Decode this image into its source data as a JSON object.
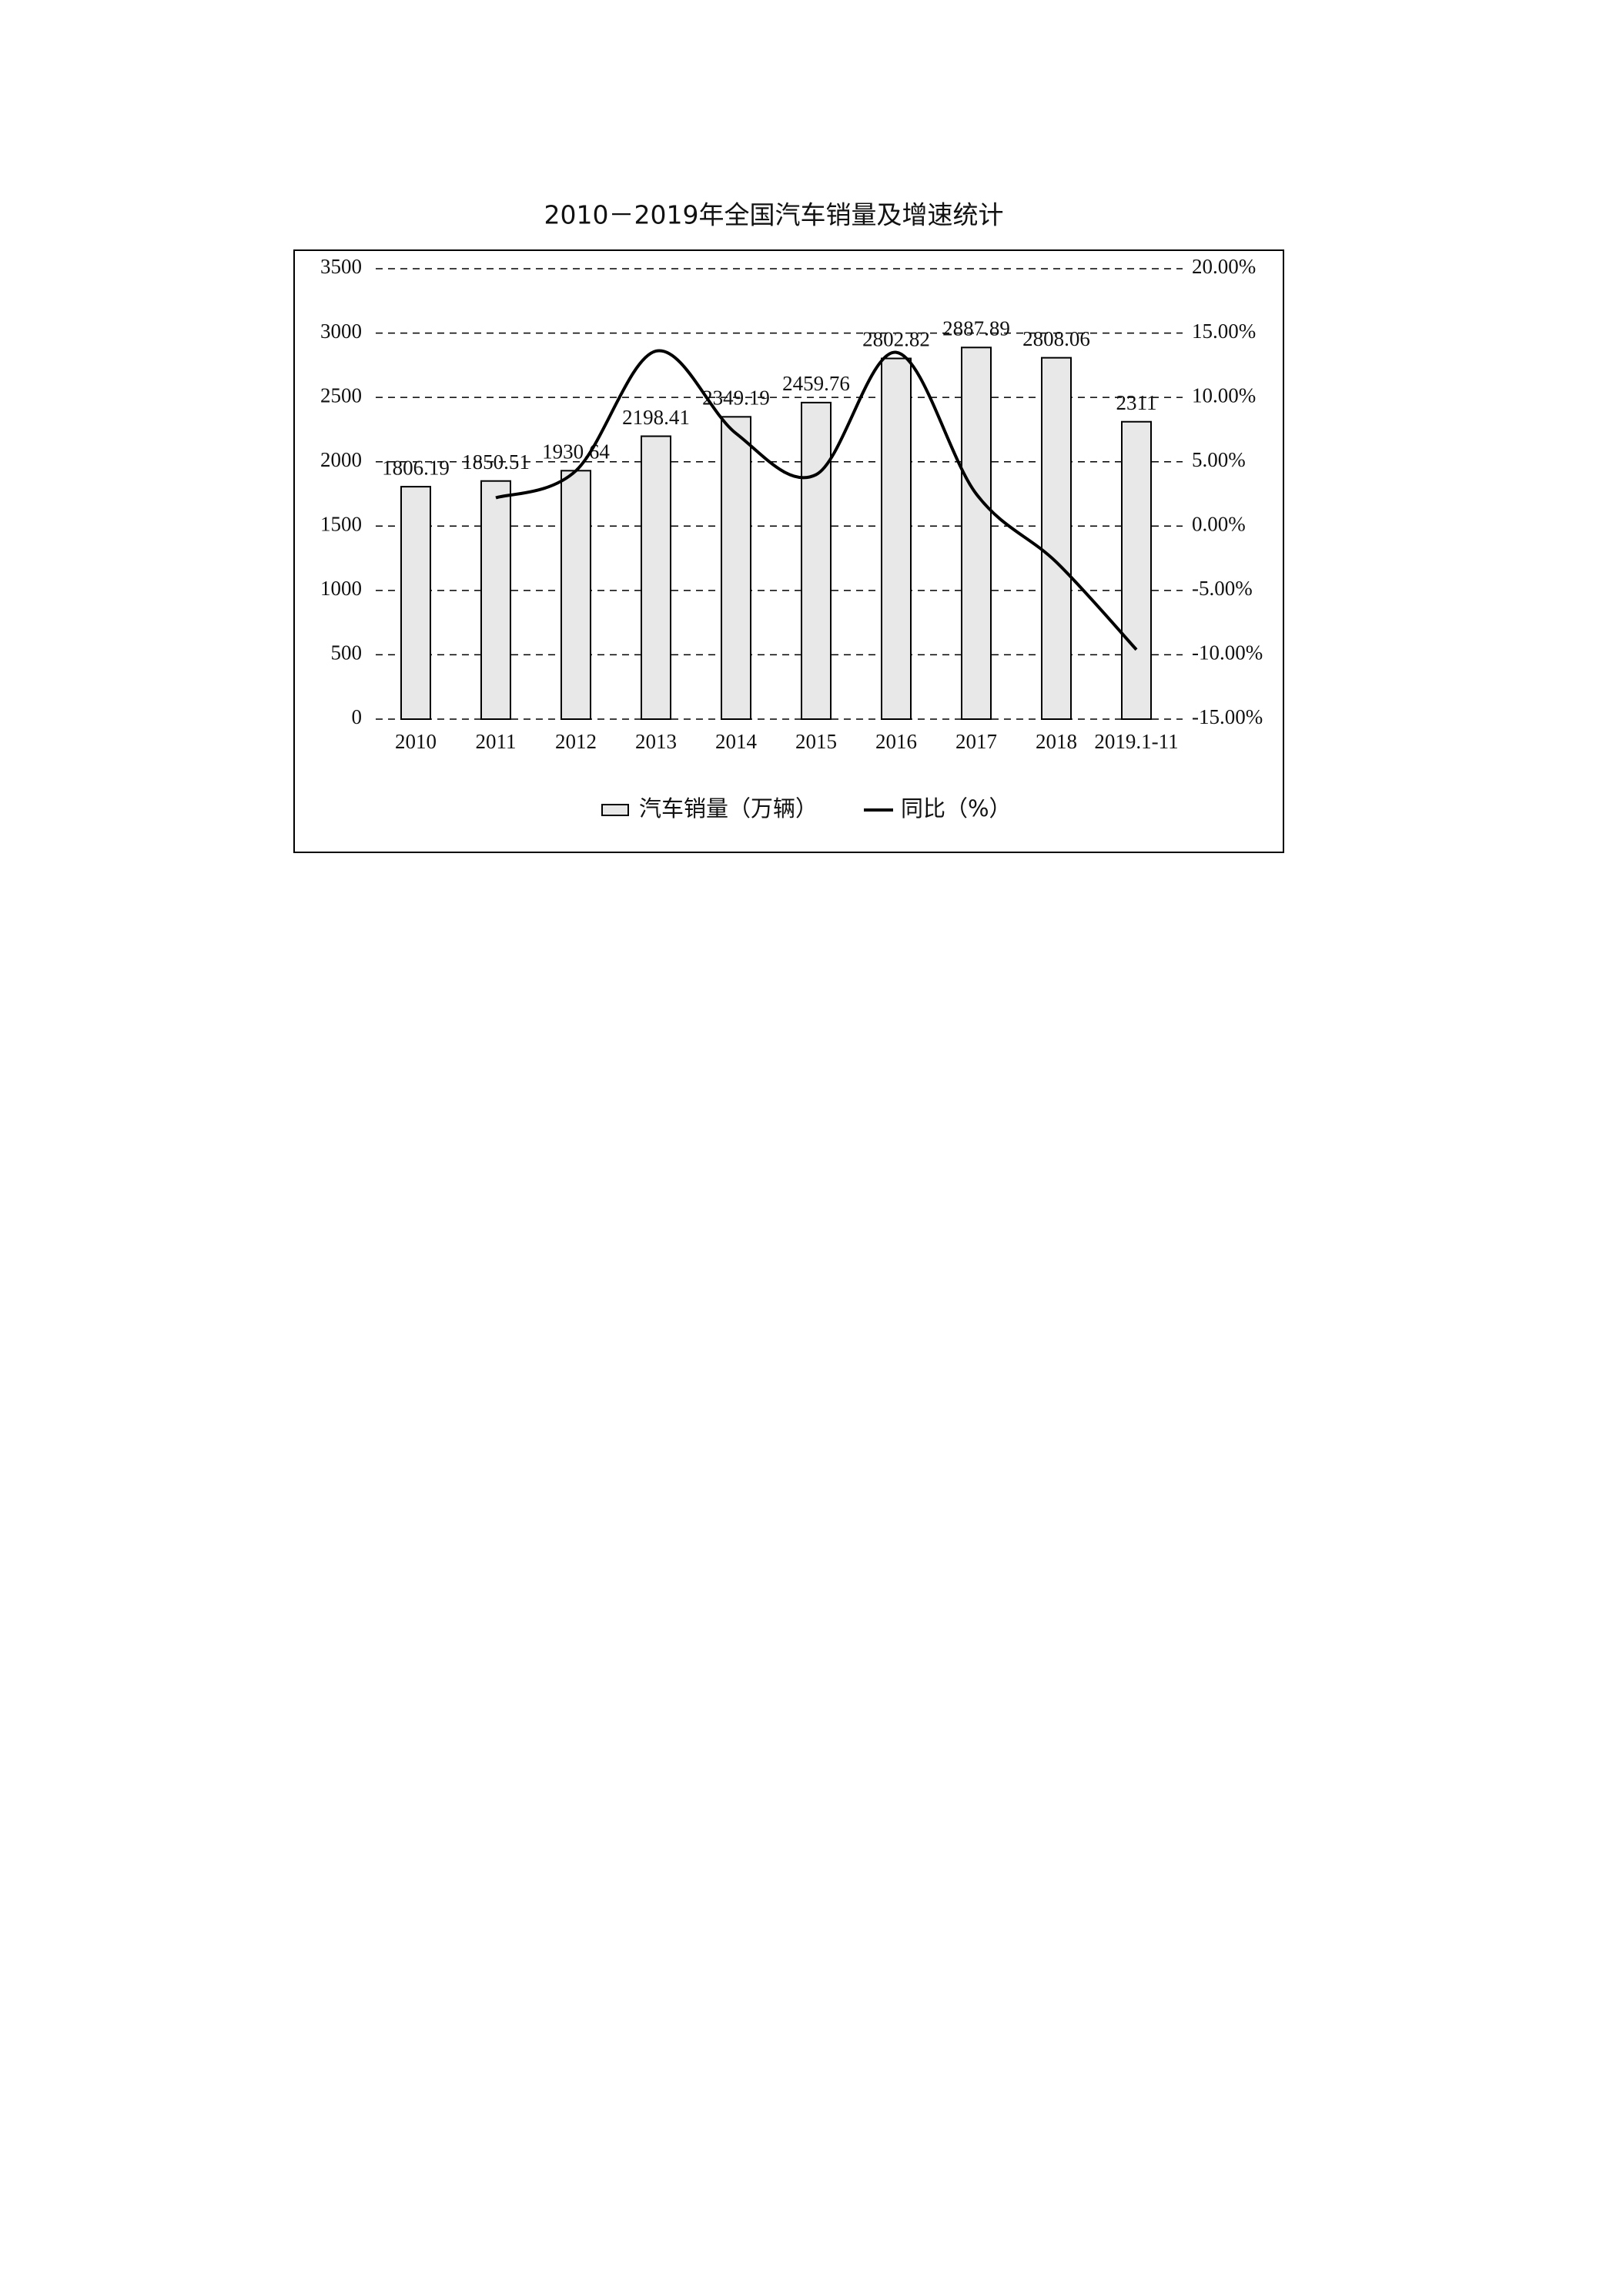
{
  "chart_data": {
    "type": "bar",
    "title": "2010－2019年全国汽车销量及增速统计",
    "categories": [
      "2010",
      "2011",
      "2012",
      "2013",
      "2014",
      "2015",
      "2016",
      "2017",
      "2018",
      "2019.1-11"
    ],
    "series": [
      {
        "name": "汽车销量（万辆）",
        "type": "bar",
        "color": "#e8e8e8",
        "values": [
          1806.19,
          1850.51,
          1930.64,
          2198.41,
          2349.19,
          2459.76,
          2802.82,
          2887.89,
          2808.06,
          2311
        ]
      },
      {
        "name": "同比（%）",
        "type": "line",
        "axis": "y2",
        "color": "#000000",
        "values": [
          null,
          2.2,
          4.3,
          13.6,
          7.2,
          4.0,
          13.5,
          2.5,
          -2.8,
          -9.6
        ]
      }
    ],
    "ylim": [
      0,
      3500
    ],
    "yticks": [
      0,
      500,
      1000,
      1500,
      2000,
      2500,
      3000,
      3500
    ],
    "y2lim": [
      -15,
      20
    ],
    "y2ticks": [
      {
        "value": -15,
        "label": "-15.00%"
      },
      {
        "value": -10,
        "label": "-10.00%"
      },
      {
        "value": -5,
        "label": "-5.00%"
      },
      {
        "value": 0,
        "label": "0.00%"
      },
      {
        "value": 5,
        "label": "5.00%"
      },
      {
        "value": 10,
        "label": "10.00%"
      },
      {
        "value": 15,
        "label": "15.00%"
      },
      {
        "value": 20,
        "label": "20.00%"
      }
    ],
    "grid": true,
    "legend": "bottom"
  }
}
